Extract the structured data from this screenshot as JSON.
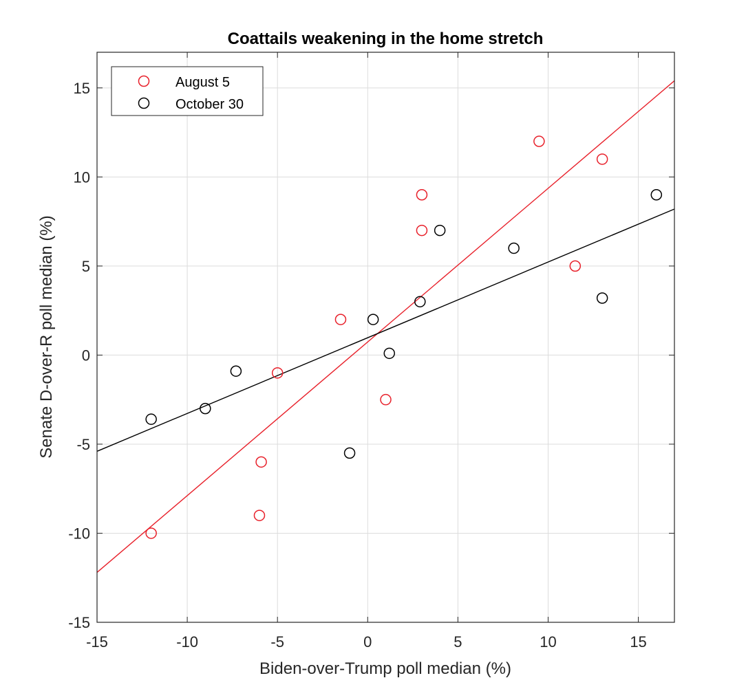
{
  "chart_data": {
    "type": "scatter",
    "title": "Coattails weakening in the home stretch",
    "xlabel": "Biden-over-Trump poll median (%)",
    "ylabel": "Senate D-over-R poll median (%)",
    "xlim": [
      -15,
      17
    ],
    "ylim": [
      -15,
      17
    ],
    "xticks": [
      -15,
      -10,
      -5,
      0,
      5,
      10,
      15
    ],
    "yticks": [
      -15,
      -10,
      -5,
      0,
      5,
      10,
      15
    ],
    "xtick_labels": [
      "-15",
      "-10",
      "-5",
      "0",
      "5",
      "10",
      "15"
    ],
    "ytick_labels": [
      "-15",
      "-10",
      "-5",
      "0",
      "5",
      "10",
      "15"
    ],
    "grid": true,
    "legend_position": "top-left",
    "series": [
      {
        "name": "August 5",
        "color": "#e8202a",
        "marker": "open-circle",
        "points": [
          {
            "x": -12,
            "y": -10
          },
          {
            "x": -6,
            "y": -9
          },
          {
            "x": -5.9,
            "y": -6
          },
          {
            "x": -5,
            "y": -1
          },
          {
            "x": -1.5,
            "y": 2
          },
          {
            "x": 1,
            "y": -2.5
          },
          {
            "x": 3,
            "y": 9
          },
          {
            "x": 3,
            "y": 7
          },
          {
            "x": 9.5,
            "y": 12
          },
          {
            "x": 11.5,
            "y": 5
          },
          {
            "x": 13,
            "y": 11
          }
        ],
        "fit_line": {
          "x": [
            -15,
            17
          ],
          "y": [
            -12.2,
            15.4
          ]
        }
      },
      {
        "name": "October 30",
        "color": "#000000",
        "marker": "open-circle",
        "points": [
          {
            "x": -12,
            "y": -3.6
          },
          {
            "x": -9,
            "y": -3
          },
          {
            "x": -7.3,
            "y": -0.9
          },
          {
            "x": -1,
            "y": -5.5
          },
          {
            "x": 0.3,
            "y": 2
          },
          {
            "x": 1.2,
            "y": 0.1
          },
          {
            "x": 2.9,
            "y": 3
          },
          {
            "x": 4,
            "y": 7
          },
          {
            "x": 8.1,
            "y": 6
          },
          {
            "x": 13,
            "y": 3.2
          },
          {
            "x": 16,
            "y": 9
          }
        ],
        "fit_line": {
          "x": [
            -15,
            17
          ],
          "y": [
            -5.4,
            8.2
          ]
        }
      }
    ]
  }
}
